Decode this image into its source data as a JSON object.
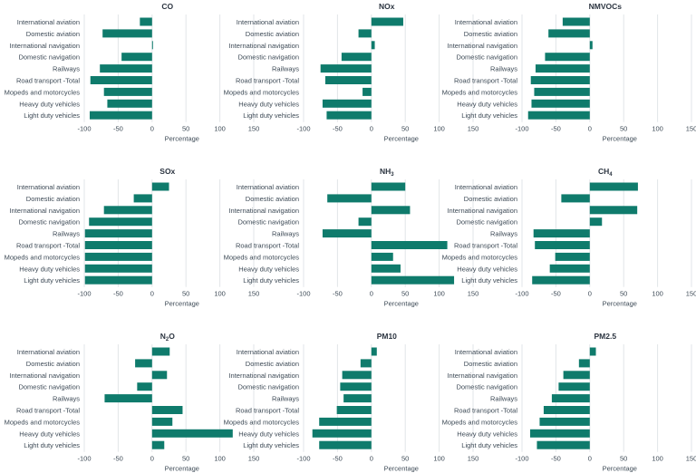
{
  "chart_data": [
    {
      "type": "bar",
      "title": "CO",
      "xlabel": "Percentage",
      "categories": [
        "International aviation",
        "Domestic aviation",
        "International navigation",
        "Domestic navigation",
        "Railways",
        "Road transport -Total",
        "Mopeds and motorcycles",
        "Heavy duty vehicles",
        "Light duty vehicles"
      ],
      "values": [
        -18,
        -73,
        1,
        -45,
        -77,
        -91,
        -71,
        -66,
        -92
      ],
      "xlim": [
        -100,
        150
      ],
      "xticks": [
        -100,
        -50,
        0,
        50,
        100,
        150
      ],
      "grid": true
    },
    {
      "type": "bar",
      "title": "NOx",
      "xlabel": "Percentage",
      "categories": [
        "International aviation",
        "Domestic aviation",
        "International navigation",
        "Domestic navigation",
        "Railways",
        "Road transport -Total",
        "Mopeds and motorcycles",
        "Heavy duty vehicles",
        "Light duty vehicles"
      ],
      "values": [
        47,
        -19,
        5,
        -44,
        -75,
        -68,
        -13,
        -72,
        -66
      ],
      "xlim": [
        -100,
        150
      ],
      "xticks": [
        -100,
        -50,
        0,
        50,
        100,
        150
      ],
      "grid": true
    },
    {
      "type": "bar",
      "title": "NMVOCs",
      "xlabel": "Percentage",
      "categories": [
        "International aviation",
        "Domestic aviation",
        "International navigation",
        "Domestic navigation",
        "Railways",
        "Road transport -Total",
        "Mopeds and motorcycles",
        "Heavy duty vehicles",
        "Light duty vehicles"
      ],
      "values": [
        -40,
        -61,
        4,
        -66,
        -80,
        -87,
        -82,
        -86,
        -91
      ],
      "xlim": [
        -100,
        150
      ],
      "xticks": [
        -100,
        -50,
        0,
        50,
        100,
        150
      ],
      "grid": true
    },
    {
      "type": "bar",
      "title": "SOx",
      "xlabel": "Percentage",
      "categories": [
        "International aviation",
        "Domestic aviation",
        "International navigation",
        "Domestic navigation",
        "Railways",
        "Road transport -Total",
        "Mopeds and motorcycles",
        "Heavy duty vehicles",
        "Light duty vehicles"
      ],
      "values": [
        25,
        -27,
        -71,
        -93,
        -99,
        -99,
        -99,
        -99,
        -99
      ],
      "xlim": [
        -100,
        150
      ],
      "xticks": [
        -100,
        -50,
        0,
        50,
        100,
        150
      ],
      "grid": true
    },
    {
      "type": "bar",
      "title": "NH",
      "title_sub": "3",
      "xlabel": "Percentage",
      "categories": [
        "International aviation",
        "Domestic aviation",
        "International navigation",
        "Domestic navigation",
        "Railways",
        "Road transport -Total",
        "Mopeds and motorcycles",
        "Heavy duty vehicles",
        "Light duty vehicles"
      ],
      "values": [
        50,
        -65,
        57,
        -19,
        -72,
        112,
        32,
        43,
        122
      ],
      "xlim": [
        -100,
        150
      ],
      "xticks": [
        -100,
        -50,
        0,
        50,
        100,
        150
      ],
      "grid": true
    },
    {
      "type": "bar",
      "title": "CH",
      "title_sub": "4",
      "xlabel": "Percentage",
      "categories": [
        "International aviation",
        "Domestic aviation",
        "International navigation",
        "Domestic navigation",
        "Railways",
        "Road transport -Total",
        "Mopeds and motorcycles",
        "Heavy duty vehicles",
        "Light duty vehicles"
      ],
      "values": [
        71,
        -42,
        70,
        18,
        -83,
        -81,
        -51,
        -59,
        -85
      ],
      "xlim": [
        -100,
        150
      ],
      "xticks": [
        -100,
        -50,
        0,
        50,
        100,
        150
      ],
      "grid": true
    },
    {
      "type": "bar",
      "title": "N",
      "title_sub": "2",
      "title_after": "O",
      "xlabel": "Percentage",
      "categories": [
        "International aviation",
        "Domestic aviation",
        "International navigation",
        "Domestic navigation",
        "Railways",
        "Road transport -Total",
        "Mopeds and motorcycles",
        "Heavy duty vehicles",
        "Light duty vehicles"
      ],
      "values": [
        26,
        -25,
        22,
        -22,
        -70,
        45,
        30,
        119,
        18
      ],
      "xlim": [
        -100,
        150
      ],
      "xticks": [
        -100,
        -50,
        0,
        50,
        100,
        150
      ],
      "grid": true
    },
    {
      "type": "bar",
      "title": "PM10",
      "xlabel": "Percentage",
      "categories": [
        "International aviation",
        "Domestic aviation",
        "International navigation",
        "Domestic navigation",
        "Railways",
        "Road transport -Total",
        "Mopeds and motorcycles",
        "Heavy duty vehicles",
        "Light duty vehicles"
      ],
      "values": [
        8,
        -16,
        -43,
        -46,
        -41,
        -51,
        -77,
        -87,
        -77
      ],
      "xlim": [
        -100,
        150
      ],
      "xticks": [
        -100,
        -50,
        0,
        50,
        100,
        150
      ],
      "grid": true
    },
    {
      "type": "bar",
      "title": "PM2.5",
      "xlabel": "Percentage",
      "categories": [
        "International aviation",
        "Domestic aviation",
        "International navigation",
        "Domestic navigation",
        "Railways",
        "Road transport -Total",
        "Mopeds and motorcycles",
        "Heavy duty vehicles",
        "Light duty vehicles"
      ],
      "values": [
        9,
        -16,
        -39,
        -46,
        -56,
        -68,
        -74,
        -88,
        -78
      ],
      "xlim": [
        -100,
        150
      ],
      "xticks": [
        -100,
        -50,
        0,
        50,
        100,
        150
      ],
      "grid": true
    }
  ],
  "colors": {
    "bar": "#0f7b6c",
    "grid": "#e2e5e8",
    "axis_text": "#3d4a56",
    "title": "#2b3440"
  }
}
